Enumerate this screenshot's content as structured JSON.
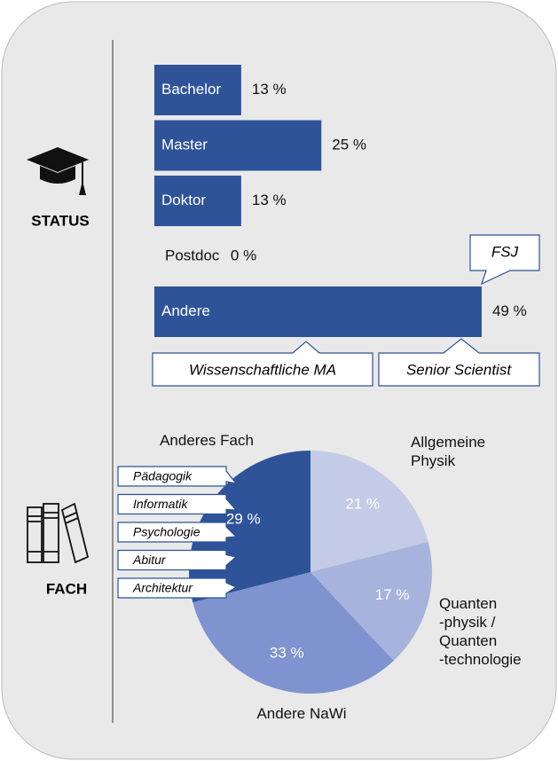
{
  "sections": [
    "STATUS",
    "FACH"
  ],
  "chart_data": [
    {
      "type": "bar",
      "orientation": "horizontal",
      "color": "#2e5399",
      "categories": [
        "Bachelor",
        "Master",
        "Doktor",
        "Postdoc",
        "Andere"
      ],
      "values": [
        13,
        25,
        13,
        0,
        49
      ],
      "value_labels": [
        "13 %",
        "25 %",
        "13 %",
        "0 %",
        "49 %"
      ],
      "annotations": [
        "FSJ",
        "Wissenschaftliche MA",
        "Senior Scientist"
      ]
    },
    {
      "type": "pie",
      "categories": [
        "Allgemeine\nPhysik",
        "Quanten\n-physik /\nQuanten\n-technologie",
        "Andere NaWi",
        "Anderes Fach"
      ],
      "values": [
        21,
        17,
        33,
        29
      ],
      "value_labels": [
        "21 %",
        "17 %",
        "33 %",
        "29 %"
      ],
      "colors": [
        "#c3cbe6",
        "#a6b3dc",
        "#7e93cf",
        "#2e5399"
      ],
      "annotations": [
        "Pädagogik",
        "Informatik",
        "Psychologie",
        "Abitur",
        "Architektur"
      ]
    }
  ]
}
